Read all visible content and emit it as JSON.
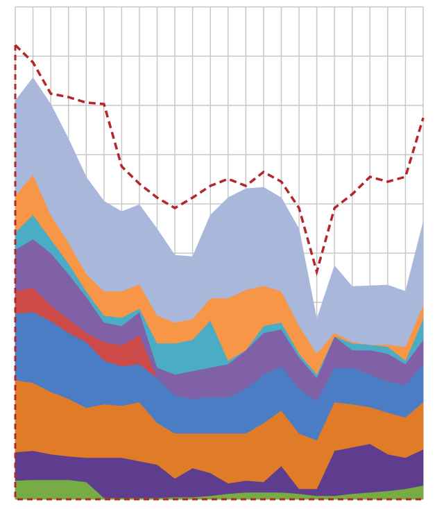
{
  "chart_data": {
    "type": "area",
    "stacked": true,
    "categories": [
      null,
      null,
      null,
      null,
      null,
      null,
      null,
      null,
      null,
      null,
      null,
      null,
      null,
      null,
      null,
      null,
      null,
      null,
      null,
      null,
      null,
      null,
      null,
      null
    ],
    "ylim": [
      0,
      710
    ],
    "yticks": [
      0,
      71,
      142,
      213,
      284,
      355,
      426,
      497,
      568,
      639,
      710
    ],
    "grid": true,
    "series": [
      {
        "color": "#77ab43",
        "values": [
          27,
          28,
          28,
          28,
          25,
          2,
          2,
          2,
          2,
          3,
          3,
          5,
          8,
          10,
          10,
          10,
          8,
          5,
          5,
          8,
          10,
          12,
          15,
          20
        ]
      },
      {
        "color": "#5e3d8e",
        "values": [
          41,
          42,
          37,
          34,
          35,
          58,
          58,
          53,
          48,
          27,
          42,
          33,
          15,
          17,
          15,
          38,
          7,
          10,
          65,
          67,
          70,
          53,
          45,
          52
        ]
      },
      {
        "color": "#e07b28",
        "values": [
          104,
          98,
          90,
          83,
          72,
          77,
          75,
          85,
          60,
          65,
          50,
          57,
          72,
          68,
          85,
          80,
          80,
          70,
          70,
          62,
          53,
          60,
          58,
          68
        ]
      },
      {
        "color": "#4a7dc4",
        "values": [
          96,
          102,
          102,
          95,
          95,
          63,
          57,
          55,
          65,
          55,
          50,
          53,
          52,
          65,
          70,
          64,
          65,
          57,
          50,
          53,
          47,
          45,
          47,
          55
        ]
      },
      {
        "color": "#cc4a48",
        "values": [
          32,
          35,
          23,
          20,
          13,
          27,
          30,
          42,
          0,
          0,
          0,
          0,
          0,
          0,
          0,
          0,
          0,
          0,
          0,
          0,
          0,
          0,
          0,
          0
        ]
      },
      {
        "color": "#8061a8",
        "values": [
          60,
          70,
          75,
          65,
          52,
          28,
          28,
          33,
          15,
          30,
          40,
          42,
          48,
          55,
          60,
          53,
          45,
          33,
          45,
          25,
          35,
          40,
          30,
          35
        ]
      },
      {
        "color": "#4bacc6",
        "values": [
          25,
          35,
          20,
          15,
          8,
          10,
          12,
          5,
          35,
          45,
          45,
          68,
          5,
          0,
          10,
          10,
          5,
          5,
          0,
          10,
          8,
          10,
          5,
          30
        ]
      },
      {
        "color": "#f79646",
        "values": [
          53,
          58,
          35,
          30,
          25,
          35,
          38,
          35,
          40,
          30,
          30,
          32,
          90,
          87,
          58,
          45,
          40,
          30,
          5,
          2,
          0,
          3,
          20,
          20
        ]
      },
      {
        "color": "#a9b7db",
        "values": [
          137,
          140,
          160,
          150,
          140,
          130,
          115,
          115,
          125,
          97,
          90,
          120,
          145,
          146,
          142,
          135,
          140,
          50,
          97,
          80,
          85,
          86,
          80,
          120
        ]
      }
    ],
    "line": {
      "color": "#b3262a",
      "dashed": true,
      "values": [
        655,
        630,
        585,
        580,
        572,
        570,
        480,
        455,
        435,
        420,
        435,
        452,
        462,
        452,
        472,
        458,
        420,
        328,
        420,
        440,
        465,
        458,
        465,
        550
      ]
    }
  }
}
